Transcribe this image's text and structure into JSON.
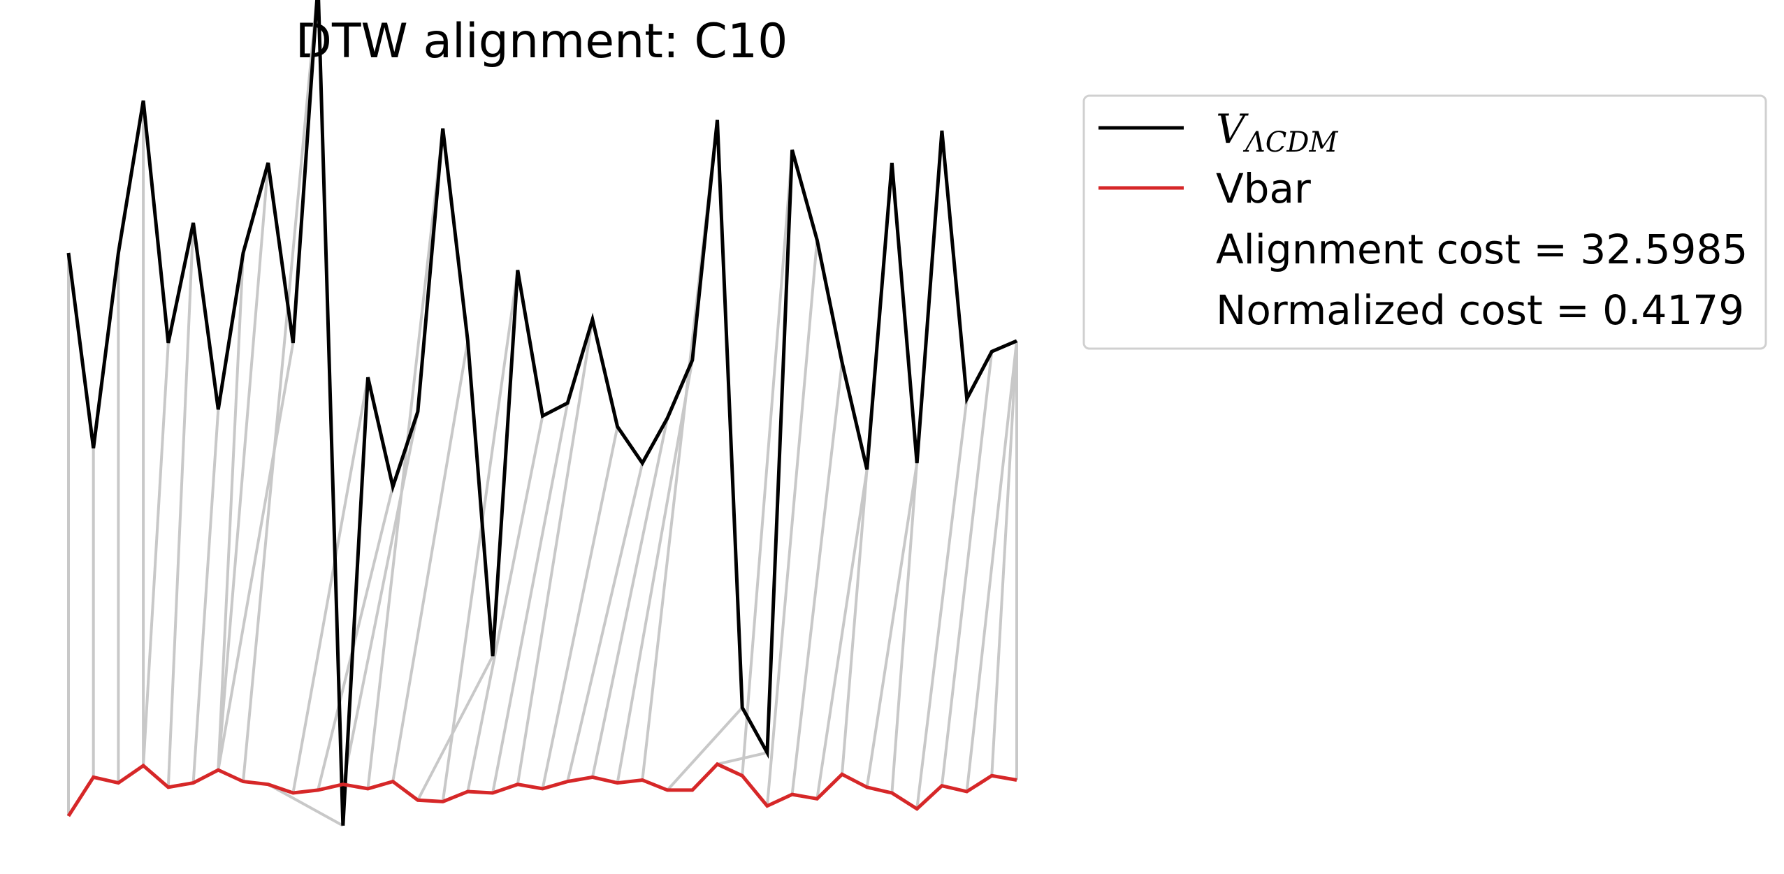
{
  "chart_data": {
    "type": "line",
    "title": "DTW alignment: C10",
    "xlabel": "",
    "ylabel": "",
    "axes_visible": false,
    "grid": false,
    "legend_position": "top-right outside plot",
    "x": [
      0,
      1,
      2,
      3,
      4,
      5,
      6,
      7,
      8,
      9,
      10,
      11,
      12,
      13,
      14,
      15,
      16,
      17,
      18,
      19,
      20,
      21,
      22,
      23,
      24,
      25,
      26,
      27,
      28,
      29,
      30,
      31,
      32,
      33,
      34,
      35,
      36,
      37,
      38
    ],
    "series": [
      {
        "name": "V_ΛCDM",
        "name_main": "V",
        "name_sub": "ΛCDM",
        "color": "#000000",
        "values": [
          8.37,
          7.46,
          8.37,
          9.08,
          7.95,
          8.51,
          7.64,
          8.37,
          8.79,
          7.95,
          9.62,
          5.7,
          7.79,
          7.28,
          7.63,
          8.95,
          7.96,
          6.49,
          8.29,
          7.61,
          7.67,
          8.06,
          7.56,
          7.39,
          7.6,
          7.87,
          8.99,
          6.25,
          6.04,
          8.85,
          8.43,
          7.86,
          7.36,
          8.79,
          7.39,
          8.94,
          7.69,
          7.91,
          7.96
        ]
      },
      {
        "name": "Vbar",
        "color": "#d62728",
        "values": [
          0.3,
          0.57,
          0.53,
          0.65,
          0.5,
          0.53,
          0.62,
          0.54,
          0.52,
          0.46,
          0.48,
          0.52,
          0.49,
          0.54,
          0.41,
          0.4,
          0.47,
          0.46,
          0.52,
          0.49,
          0.54,
          0.57,
          0.53,
          0.55,
          0.48,
          0.48,
          0.66,
          0.58,
          0.37,
          0.45,
          0.42,
          0.59,
          0.5,
          0.46,
          0.35,
          0.51,
          0.47,
          0.58,
          0.55
        ]
      }
    ],
    "alignment_path": [
      [
        0,
        0
      ],
      [
        1,
        1
      ],
      [
        2,
        2
      ],
      [
        3,
        3
      ],
      [
        4,
        3
      ],
      [
        5,
        4
      ],
      [
        6,
        5
      ],
      [
        7,
        6
      ],
      [
        8,
        6
      ],
      [
        9,
        6
      ],
      [
        10,
        7
      ],
      [
        11,
        8
      ],
      [
        12,
        9
      ],
      [
        13,
        10
      ],
      [
        14,
        11
      ],
      [
        15,
        12
      ],
      [
        16,
        13
      ],
      [
        17,
        14
      ],
      [
        18,
        15
      ],
      [
        19,
        16
      ],
      [
        20,
        17
      ],
      [
        21,
        18
      ],
      [
        22,
        19
      ],
      [
        23,
        20
      ],
      [
        24,
        21
      ],
      [
        25,
        22
      ],
      [
        26,
        23
      ],
      [
        27,
        24
      ],
      [
        28,
        26
      ],
      [
        29,
        27
      ],
      [
        30,
        28
      ],
      [
        31,
        29
      ],
      [
        32,
        30
      ],
      [
        33,
        31
      ],
      [
        34,
        32
      ],
      [
        35,
        33
      ],
      [
        36,
        34
      ],
      [
        37,
        35
      ],
      [
        38,
        36
      ],
      [
        38,
        37
      ],
      [
        38,
        38
      ]
    ],
    "alignment_color": "#c8c8c8",
    "legend": {
      "entries": [
        "V_ΛCDM",
        "Vbar"
      ],
      "annotations": [
        "Alignment cost = 32.5985",
        "Normalized cost = 0.4179"
      ]
    }
  }
}
